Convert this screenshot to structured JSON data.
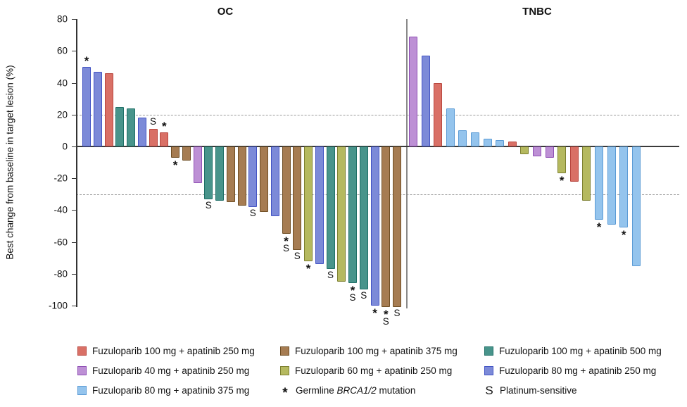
{
  "figure": {
    "ylabel": "Best change from baseline in target lesion (%)",
    "group_titles": [
      "OC",
      "TNBC"
    ]
  },
  "chart_data": {
    "type": "bar",
    "subtype": "waterfall",
    "title": "",
    "xlabel": "",
    "ylabel": "Best change from baseline in target lesion (%)",
    "ylim": [
      -105,
      80
    ],
    "yticks": [
      80,
      60,
      40,
      20,
      0,
      -20,
      -40,
      -60,
      -80,
      -100
    ],
    "reference_lines_pct": [
      20,
      -30
    ],
    "grid": "off",
    "legend_position": "bottom",
    "colors": {
      "red": {
        "fill": "#D97066",
        "stroke": "#B8463E"
      },
      "brown": {
        "fill": "#A67C52",
        "stroke": "#6F4E24"
      },
      "teal": {
        "fill": "#48948B",
        "stroke": "#1E6F66"
      },
      "purple": {
        "fill": "#BD90D5",
        "stroke": "#8F4FB5"
      },
      "olive": {
        "fill": "#B5B95F",
        "stroke": "#7D8030"
      },
      "periwinkle": {
        "fill": "#7C8AD8",
        "stroke": "#4253C4"
      },
      "lightblue": {
        "fill": "#94C4ED",
        "stroke": "#5B9BD5"
      }
    },
    "dose_labels": {
      "red": "Fuzuloparib 100 mg + apatinib 250 mg",
      "brown": "Fuzuloparib 100 mg + apatinib 375 mg",
      "teal": "Fuzuloparib 100 mg + apatinib 500 mg",
      "purple": "Fuzuloparib 40 mg + apatinib 250 mg",
      "olive": "Fuzuloparib 60 mg + apatinib 250 mg",
      "periwinkle": "Fuzuloparib 80 mg + apatinib 250 mg",
      "lightblue": "Fuzuloparib 80 mg + apatinib 375 mg"
    },
    "marker_meanings": {
      "*": "Germline BRCA1/2 mutation",
      "S": "Platinum-sensitive"
    },
    "groups": [
      {
        "name": "OC",
        "bars": [
          {
            "v": 50,
            "c": "periwinkle",
            "m": [
              "*"
            ]
          },
          {
            "v": 47,
            "c": "periwinkle",
            "m": []
          },
          {
            "v": 46,
            "c": "red",
            "m": []
          },
          {
            "v": 25,
            "c": "teal",
            "m": []
          },
          {
            "v": 24,
            "c": "teal",
            "m": []
          },
          {
            "v": 18,
            "c": "periwinkle",
            "m": []
          },
          {
            "v": 11,
            "c": "red",
            "m": [
              "S"
            ]
          },
          {
            "v": 9,
            "c": "red",
            "m": [
              "*"
            ]
          },
          {
            "v": -7,
            "c": "brown",
            "m": [
              "*"
            ]
          },
          {
            "v": -9,
            "c": "brown",
            "m": []
          },
          {
            "v": -23,
            "c": "purple",
            "m": []
          },
          {
            "v": -33,
            "c": "teal",
            "m": [
              "S"
            ]
          },
          {
            "v": -34,
            "c": "teal",
            "m": []
          },
          {
            "v": -35,
            "c": "brown",
            "m": []
          },
          {
            "v": -37,
            "c": "brown",
            "m": []
          },
          {
            "v": -38,
            "c": "periwinkle",
            "m": [
              "S"
            ]
          },
          {
            "v": -41,
            "c": "brown",
            "m": []
          },
          {
            "v": -44,
            "c": "periwinkle",
            "m": []
          },
          {
            "v": -55,
            "c": "brown",
            "m": [
              "*",
              "S"
            ]
          },
          {
            "v": -65,
            "c": "brown",
            "m": [
              "S"
            ]
          },
          {
            "v": -72,
            "c": "olive",
            "m": [
              "*"
            ]
          },
          {
            "v": -74,
            "c": "periwinkle",
            "m": []
          },
          {
            "v": -77,
            "c": "teal",
            "m": [
              "S"
            ]
          },
          {
            "v": -85,
            "c": "olive",
            "m": []
          },
          {
            "v": -86,
            "c": "teal",
            "m": [
              "*",
              "S"
            ]
          },
          {
            "v": -90,
            "c": "teal",
            "m": [
              "S"
            ]
          },
          {
            "v": -100,
            "c": "periwinkle",
            "m": [
              "*"
            ]
          },
          {
            "v": -101,
            "c": "brown",
            "m": [
              "*",
              "S"
            ]
          },
          {
            "v": -101,
            "c": "brown",
            "m": [
              "S"
            ]
          }
        ]
      },
      {
        "name": "TNBC",
        "bars": [
          {
            "v": 69,
            "c": "purple",
            "m": []
          },
          {
            "v": 57,
            "c": "periwinkle",
            "m": []
          },
          {
            "v": 40,
            "c": "red",
            "m": []
          },
          {
            "v": 24,
            "c": "lightblue",
            "m": []
          },
          {
            "v": 10,
            "c": "lightblue",
            "m": []
          },
          {
            "v": 9,
            "c": "lightblue",
            "m": []
          },
          {
            "v": 5,
            "c": "lightblue",
            "m": []
          },
          {
            "v": 4,
            "c": "lightblue",
            "m": []
          },
          {
            "v": 3,
            "c": "red",
            "m": []
          },
          {
            "v": -5,
            "c": "olive",
            "m": []
          },
          {
            "v": -6,
            "c": "purple",
            "m": []
          },
          {
            "v": -7,
            "c": "purple",
            "m": []
          },
          {
            "v": -17,
            "c": "olive",
            "m": [
              "*"
            ]
          },
          {
            "v": -22,
            "c": "red",
            "m": []
          },
          {
            "v": -34,
            "c": "olive",
            "m": []
          },
          {
            "v": -46,
            "c": "lightblue",
            "m": [
              "*"
            ]
          },
          {
            "v": -49,
            "c": "lightblue",
            "m": []
          },
          {
            "v": -51,
            "c": "lightblue",
            "m": [
              "*"
            ]
          },
          {
            "v": -75,
            "c": "lightblue",
            "m": []
          }
        ]
      }
    ],
    "legend_rows": [
      [
        {
          "swatch": "red",
          "label": "Fuzuloparib 100 mg + apatinib 250 mg"
        },
        {
          "swatch": "brown",
          "label": "Fuzuloparib 100 mg + apatinib 375 mg"
        },
        {
          "swatch": "teal",
          "label": "Fuzuloparib 100 mg + apatinib 500 mg"
        }
      ],
      [
        {
          "swatch": "purple",
          "label": "Fuzuloparib 40 mg + apatinib 250 mg"
        },
        {
          "swatch": "olive",
          "label": "Fuzuloparib 60 mg + apatinib 250 mg"
        },
        {
          "swatch": "periwinkle",
          "label": "Fuzuloparib 80 mg + apatinib 250 mg"
        }
      ],
      [
        {
          "swatch": "lightblue",
          "label": "Fuzuloparib 80 mg + apatinib 375 mg"
        },
        {
          "symbol": "*",
          "parts": [
            {
              "t": "Germline "
            },
            {
              "t": "BRCA1/2",
              "i": true
            },
            {
              "t": " mutation"
            }
          ]
        },
        {
          "symbol": "S",
          "label": "Platinum-sensitive"
        }
      ]
    ]
  }
}
